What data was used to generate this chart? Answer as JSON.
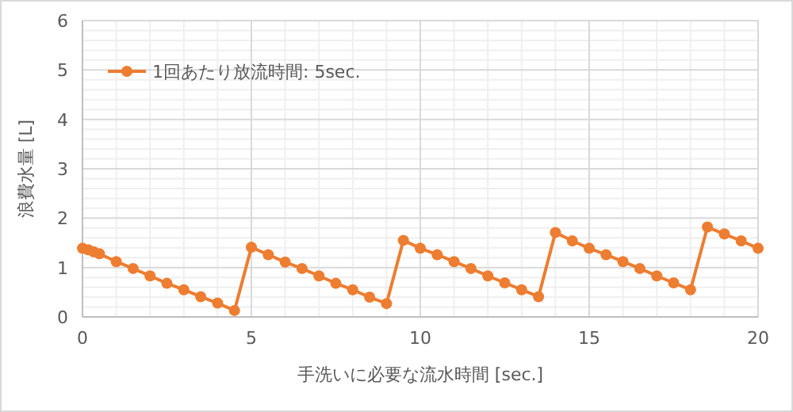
{
  "chart_data": {
    "type": "line",
    "xlabel": "手洗いに必要な流水時間 [sec.]",
    "ylabel": "浪費水量 [L]",
    "x": [
      0,
      0.17,
      0.33,
      0.5,
      1,
      1.5,
      2,
      2.5,
      3,
      3.5,
      4,
      4.5,
      5,
      5.5,
      6,
      6.5,
      7,
      7.5,
      8,
      8.5,
      9,
      9.5,
      10,
      10.5,
      11,
      11.5,
      12,
      12.5,
      13,
      13.5,
      14,
      14.5,
      15,
      15.5,
      16,
      16.5,
      17,
      17.5,
      18,
      18.5,
      19,
      19.5,
      20
    ],
    "series": [
      {
        "name": "1回あたり放流時間: 5sec.",
        "color": "#ed7d31",
        "values": [
          1.39,
          1.36,
          1.32,
          1.28,
          1.12,
          0.98,
          0.83,
          0.68,
          0.55,
          0.41,
          0.28,
          0.13,
          1.41,
          1.26,
          1.11,
          0.98,
          0.83,
          0.68,
          0.55,
          0.4,
          0.27,
          1.55,
          1.39,
          1.26,
          1.12,
          0.98,
          0.83,
          0.69,
          0.55,
          0.41,
          1.71,
          1.54,
          1.39,
          1.26,
          1.12,
          0.98,
          0.83,
          0.69,
          0.55,
          1.82,
          1.68,
          1.54,
          1.39
        ]
      }
    ],
    "xlim": [
      0,
      20
    ],
    "xticks": [
      0,
      5,
      10,
      15,
      20
    ],
    "ylim": [
      0,
      6
    ],
    "yticks": [
      0,
      1,
      2,
      3,
      4,
      5,
      6
    ],
    "grid": true,
    "legend": "top left",
    "marker": "circle",
    "line_style": "solid"
  }
}
